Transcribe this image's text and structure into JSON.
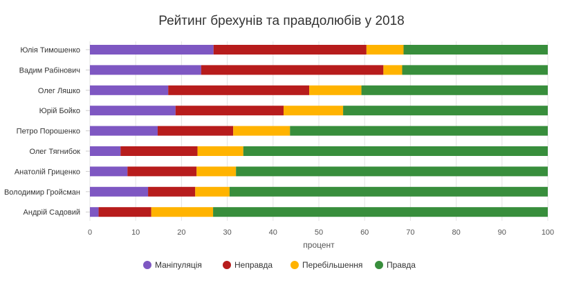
{
  "chart_data": {
    "type": "bar",
    "orientation": "horizontal",
    "stacked": true,
    "title": "Рейтинг брехунів та правдолюбів у 2018",
    "xlabel": "процент",
    "ylabel": "",
    "xlim": [
      0,
      100
    ],
    "xticks": [
      0,
      10,
      20,
      30,
      40,
      50,
      60,
      70,
      80,
      90,
      100
    ],
    "grid": true,
    "legend_position": "bottom",
    "categories": [
      "Юлія Тимошенко",
      "Вадим Рабінович",
      "Олег Ляшко",
      "Юрій Бойко",
      "Петро Порошенко",
      "Олег Тягнибок",
      "Анатолій Гриценко",
      "Володимир Гройсман",
      "Андрій Садовий"
    ],
    "series": [
      {
        "name": "Маніпуляція",
        "color": "#7e57c2",
        "values": [
          27,
          24.3,
          17.1,
          18.7,
          14.8,
          6.7,
          8.2,
          12.7,
          1.9
        ]
      },
      {
        "name": "Неправда",
        "color": "#b71c1c",
        "values": [
          33.4,
          39.8,
          30.8,
          23.6,
          16.5,
          16.8,
          15.1,
          10.3,
          11.5
        ]
      },
      {
        "name": "Перебільшення",
        "color": "#ffb300",
        "values": [
          8.1,
          4.1,
          11.4,
          13,
          12.4,
          10,
          8.6,
          7.5,
          13.5
        ]
      },
      {
        "name": "Правда",
        "color": "#388e3c",
        "values": [
          31.5,
          31.8,
          40.7,
          44.7,
          56.3,
          66.5,
          68.1,
          69.5,
          73.1
        ]
      }
    ]
  }
}
